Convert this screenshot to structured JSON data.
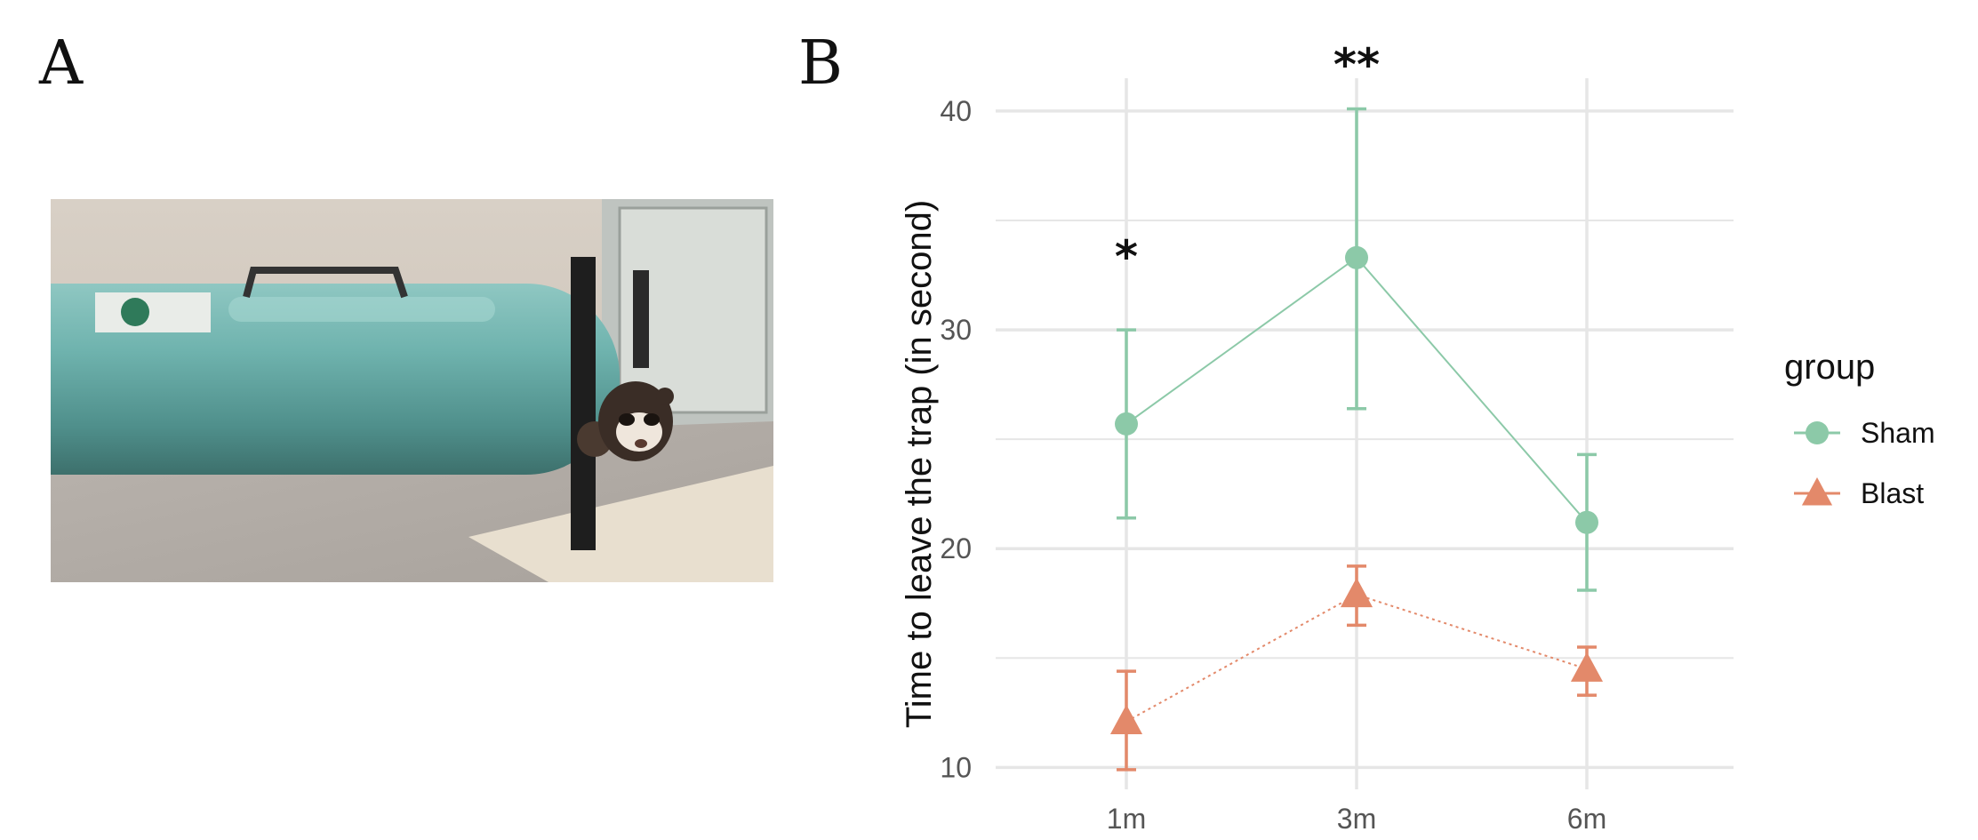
{
  "panels": {
    "a_label": "A",
    "b_label": "B"
  },
  "colors": {
    "sham": "#8CC9A8",
    "blast": "#E3896A",
    "grid": "#E6E6E6"
  },
  "chart_data": {
    "type": "line",
    "categories": [
      "1m",
      "3m",
      "6m"
    ],
    "ylabel": "Time to leave the trap (in second)",
    "xlabel": "",
    "ylim": [
      9,
      41.5
    ],
    "yticks": [
      10,
      20,
      30,
      40
    ],
    "grid": true,
    "legend": {
      "title": "group",
      "placement": "right"
    },
    "series": [
      {
        "name": "Sham",
        "marker": "circle",
        "linestyle": "solid",
        "values": [
          25.7,
          33.3,
          21.2
        ],
        "lower": [
          21.4,
          26.4,
          18.1
        ],
        "upper": [
          30.0,
          40.1,
          24.3
        ]
      },
      {
        "name": "Blast",
        "marker": "triangle",
        "linestyle": "dotted",
        "values": [
          12.1,
          17.9,
          14.5
        ],
        "lower": [
          9.9,
          16.5,
          13.3
        ],
        "upper": [
          14.4,
          19.2,
          15.5
        ]
      }
    ],
    "annotations": [
      {
        "category": "1m",
        "text": "*"
      },
      {
        "category": "3m",
        "text": "**"
      }
    ]
  }
}
